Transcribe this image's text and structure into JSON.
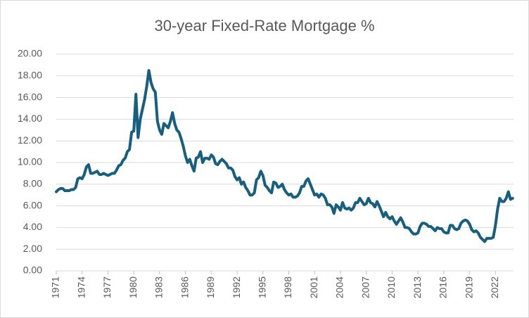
{
  "chart_data": {
    "type": "line",
    "title": "30-year Fixed-Rate Mortgage %",
    "x": [
      1971,
      1971.25,
      1971.5,
      1971.75,
      1972,
      1972.25,
      1972.5,
      1972.75,
      1973,
      1973.25,
      1973.5,
      1973.75,
      1974,
      1974.25,
      1974.5,
      1974.75,
      1975,
      1975.25,
      1975.5,
      1975.75,
      1976,
      1976.25,
      1976.5,
      1976.75,
      1977,
      1977.25,
      1977.5,
      1977.75,
      1978,
      1978.25,
      1978.5,
      1978.75,
      1979,
      1979.25,
      1979.5,
      1979.75,
      1980,
      1980.25,
      1980.5,
      1980.75,
      1981,
      1981.25,
      1981.5,
      1981.75,
      1982,
      1982.25,
      1982.5,
      1982.75,
      1983,
      1983.25,
      1983.5,
      1983.75,
      1984,
      1984.25,
      1984.5,
      1984.75,
      1985,
      1985.25,
      1985.5,
      1985.75,
      1986,
      1986.25,
      1986.5,
      1986.75,
      1987,
      1987.25,
      1987.5,
      1987.75,
      1988,
      1988.25,
      1988.5,
      1988.75,
      1989,
      1989.25,
      1989.5,
      1989.75,
      1990,
      1990.25,
      1990.5,
      1990.75,
      1991,
      1991.25,
      1991.5,
      1991.75,
      1992,
      1992.25,
      1992.5,
      1992.75,
      1993,
      1993.25,
      1993.5,
      1993.75,
      1994,
      1994.25,
      1994.5,
      1994.75,
      1995,
      1995.25,
      1995.5,
      1995.75,
      1996,
      1996.25,
      1996.5,
      1996.75,
      1997,
      1997.25,
      1997.5,
      1997.75,
      1998,
      1998.25,
      1998.5,
      1998.75,
      1999,
      1999.25,
      1999.5,
      1999.75,
      2000,
      2000.25,
      2000.5,
      2000.75,
      2001,
      2001.25,
      2001.5,
      2001.75,
      2002,
      2002.25,
      2002.5,
      2002.75,
      2003,
      2003.25,
      2003.5,
      2003.75,
      2004,
      2004.25,
      2004.5,
      2004.75,
      2005,
      2005.25,
      2005.5,
      2005.75,
      2006,
      2006.25,
      2006.5,
      2006.75,
      2007,
      2007.25,
      2007.5,
      2007.75,
      2008,
      2008.25,
      2008.5,
      2008.75,
      2009,
      2009.25,
      2009.5,
      2009.75,
      2010,
      2010.25,
      2010.5,
      2010.75,
      2011,
      2011.25,
      2011.5,
      2011.75,
      2012,
      2012.25,
      2012.5,
      2012.75,
      2013,
      2013.25,
      2013.5,
      2013.75,
      2014,
      2014.25,
      2014.5,
      2014.75,
      2015,
      2015.25,
      2015.5,
      2015.75,
      2016,
      2016.25,
      2016.5,
      2016.75,
      2017,
      2017.25,
      2017.5,
      2017.75,
      2018,
      2018.25,
      2018.5,
      2018.75,
      2019,
      2019.25,
      2019.5,
      2019.75,
      2020,
      2020.25,
      2020.5,
      2020.75,
      2021,
      2021.25,
      2021.5,
      2021.75,
      2022,
      2022.25,
      2022.5,
      2022.75,
      2023,
      2023.25,
      2023.5,
      2023.75,
      2024
    ],
    "series": [
      {
        "color": "#175e7f",
        "values": [
          7.3,
          7.5,
          7.6,
          7.6,
          7.4,
          7.4,
          7.4,
          7.5,
          7.5,
          7.7,
          8.5,
          8.6,
          8.5,
          8.9,
          9.6,
          9.8,
          9.0,
          9.0,
          9.1,
          9.2,
          8.9,
          8.9,
          9.0,
          8.9,
          8.8,
          8.9,
          9.0,
          9.0,
          9.3,
          9.7,
          9.8,
          10.2,
          10.4,
          11.0,
          11.2,
          12.8,
          12.9,
          16.3,
          12.3,
          14.0,
          14.9,
          15.8,
          17.0,
          18.5,
          17.4,
          16.8,
          16.5,
          13.8,
          13.0,
          12.6,
          13.6,
          13.4,
          13.2,
          13.8,
          14.6,
          13.6,
          13.0,
          12.8,
          12.2,
          11.5,
          10.6,
          10.0,
          10.3,
          9.7,
          9.2,
          10.4,
          10.5,
          11.0,
          10.0,
          10.4,
          10.4,
          10.3,
          10.7,
          10.5,
          9.9,
          9.8,
          10.1,
          10.3,
          10.1,
          9.9,
          9.5,
          9.5,
          9.3,
          8.7,
          8.4,
          8.6,
          8.0,
          8.2,
          7.7,
          7.4,
          7.0,
          7.0,
          7.2,
          8.4,
          8.6,
          9.2,
          8.8,
          7.9,
          7.7,
          7.4,
          7.2,
          8.2,
          8.1,
          7.7,
          7.8,
          8.0,
          7.5,
          7.2,
          7.0,
          7.1,
          6.8,
          6.8,
          6.9,
          7.2,
          7.8,
          7.8,
          8.3,
          8.5,
          8.0,
          7.5,
          7.0,
          7.1,
          6.8,
          7.1,
          7.0,
          6.7,
          6.1,
          6.1,
          5.9,
          5.3,
          6.1,
          5.9,
          5.6,
          6.3,
          5.8,
          5.7,
          5.8,
          5.6,
          5.8,
          6.3,
          6.3,
          6.7,
          6.4,
          6.1,
          6.2,
          6.7,
          6.3,
          6.2,
          5.9,
          6.4,
          6.0,
          5.5,
          5.0,
          5.4,
          5.0,
          4.8,
          5.0,
          4.6,
          4.3,
          4.6,
          4.9,
          4.5,
          4.0,
          4.0,
          3.9,
          3.6,
          3.4,
          3.4,
          3.5,
          4.1,
          4.4,
          4.4,
          4.3,
          4.1,
          4.1,
          3.9,
          3.7,
          4.0,
          3.9,
          3.9,
          3.6,
          3.5,
          3.5,
          4.2,
          4.2,
          3.9,
          3.8,
          3.9,
          4.4,
          4.6,
          4.7,
          4.6,
          4.3,
          3.8,
          3.6,
          3.7,
          3.5,
          3.1,
          2.9,
          2.7,
          3.0,
          3.0,
          3.0,
          3.1,
          4.2,
          5.7,
          6.7,
          6.4,
          6.4,
          6.7,
          7.3,
          6.6,
          6.7
        ]
      }
    ],
    "xlim": [
      1971,
      2024.1
    ],
    "xticks": [
      1971,
      1974,
      1977,
      1980,
      1983,
      1986,
      1989,
      1992,
      1995,
      1998,
      2001,
      2004,
      2007,
      2010,
      2013,
      2016,
      2019,
      2022
    ],
    "ylim": [
      0,
      20
    ],
    "yticks": [
      {
        "value": 0,
        "label": "0.00"
      },
      {
        "value": 2,
        "label": "2.00"
      },
      {
        "value": 4,
        "label": "4.00"
      },
      {
        "value": 6,
        "label": "6.00"
      },
      {
        "value": 8,
        "label": "8.00"
      },
      {
        "value": 10,
        "label": "10.00"
      },
      {
        "value": 12,
        "label": "12.00"
      },
      {
        "value": 14,
        "label": "14.00"
      },
      {
        "value": 16,
        "label": "16.00"
      },
      {
        "value": 18,
        "label": "18.00"
      },
      {
        "value": 20,
        "label": "20.00"
      }
    ],
    "grid": true
  }
}
